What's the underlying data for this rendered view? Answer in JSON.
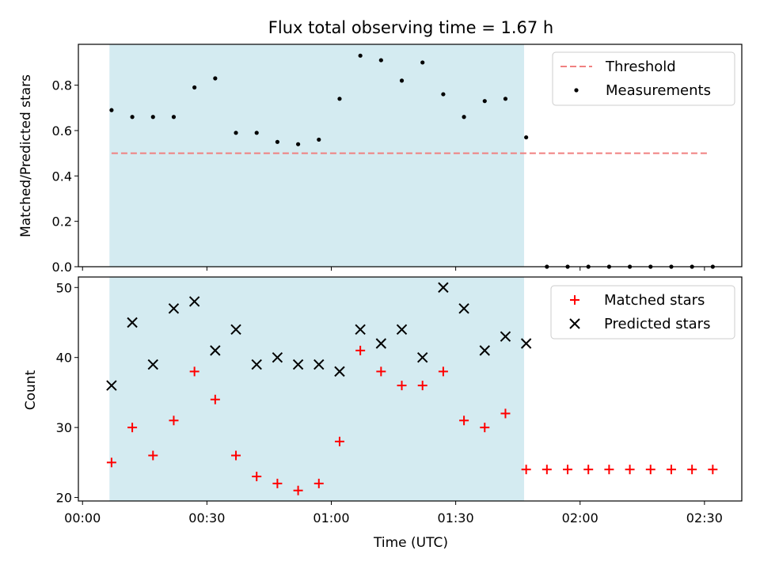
{
  "chart_data": {
    "type": "scatter",
    "title": "Flux total observing time = 1.67 h",
    "xlabel": "Time (UTC)",
    "x_ticks": [
      "00:00",
      "00:30",
      "01:00",
      "01:30",
      "02:00",
      "02:30"
    ],
    "x_tick_minutes": [
      0,
      30,
      60,
      90,
      120,
      150
    ],
    "xlim_minutes": [
      -1,
      159
    ],
    "shaded_region_minutes": [
      6.5,
      106.5
    ],
    "shaded_color": "#d4ebf1",
    "panels": [
      {
        "id": "ratio",
        "ylabel": "Matched/Predicted stars",
        "ylim": [
          0,
          0.98
        ],
        "y_ticks": [
          0.0,
          0.2,
          0.4,
          0.6,
          0.8
        ],
        "y_tick_labels": [
          "0.0",
          "0.2",
          "0.4",
          "0.6",
          "0.8"
        ],
        "legend_position": "top-right",
        "threshold": {
          "name": "Threshold",
          "value": 0.5,
          "x_range_minutes": [
            7,
            151
          ],
          "color": "#f08080"
        },
        "series": [
          {
            "name": "Measurements",
            "marker": "dot",
            "color": "#000000",
            "x_minutes": [
              7,
              12,
              17,
              22,
              27,
              32,
              37,
              42,
              47,
              52,
              57,
              62,
              67,
              72,
              77,
              82,
              87,
              92,
              97,
              102,
              107,
              112,
              117,
              122,
              127,
              132,
              137,
              142,
              147,
              152
            ],
            "values": [
              0.69,
              0.66,
              0.66,
              0.66,
              0.79,
              0.83,
              0.59,
              0.59,
              0.55,
              0.54,
              0.56,
              0.74,
              0.93,
              0.91,
              0.82,
              0.9,
              0.76,
              0.66,
              0.73,
              0.74,
              0.57,
              0,
              0,
              0,
              0,
              0,
              0,
              0,
              0,
              0
            ]
          }
        ]
      },
      {
        "id": "count",
        "ylabel": "Count",
        "ylim": [
          19.5,
          51.5
        ],
        "y_ticks": [
          20,
          30,
          40,
          50
        ],
        "y_tick_labels": [
          "20",
          "30",
          "40",
          "50"
        ],
        "legend_position": "top-right",
        "series": [
          {
            "name": "Matched stars",
            "marker": "plus",
            "color": "#ff0000",
            "x_minutes": [
              7,
              12,
              17,
              22,
              27,
              32,
              37,
              42,
              47,
              52,
              57,
              62,
              67,
              72,
              77,
              82,
              87,
              92,
              97,
              102,
              107,
              112,
              117,
              122,
              127,
              132,
              137,
              142,
              147,
              152
            ],
            "values": [
              25,
              30,
              26,
              31,
              38,
              34,
              26,
              23,
              22,
              21,
              22,
              28,
              41,
              38,
              36,
              36,
              38,
              31,
              30,
              32,
              24,
              24,
              24,
              24,
              24,
              24,
              24,
              24,
              24,
              24
            ]
          },
          {
            "name": "Predicted stars",
            "marker": "x",
            "color": "#000000",
            "x_minutes": [
              7,
              12,
              17,
              22,
              27,
              32,
              37,
              42,
              47,
              52,
              57,
              62,
              67,
              72,
              77,
              82,
              87,
              92,
              97,
              102,
              107
            ],
            "values": [
              36,
              45,
              39,
              47,
              48,
              41,
              44,
              39,
              40,
              39,
              39,
              38,
              44,
              42,
              44,
              40,
              50,
              47,
              41,
              43,
              42
            ]
          }
        ]
      }
    ]
  }
}
